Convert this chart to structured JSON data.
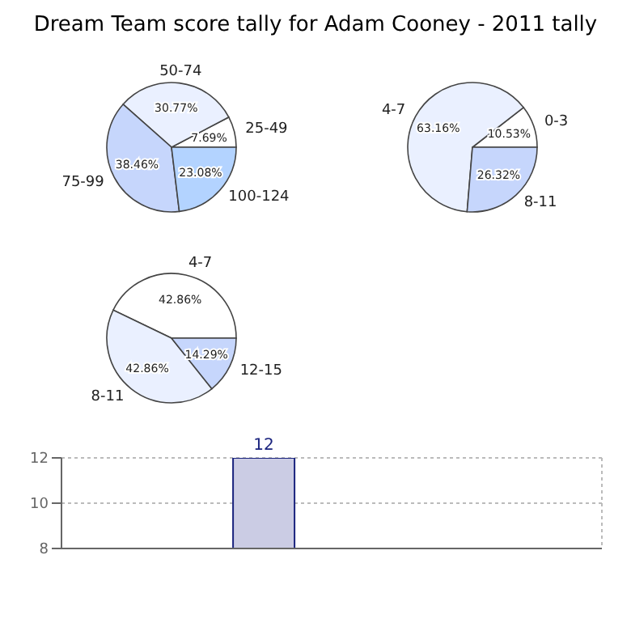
{
  "chart_data": [
    {
      "type": "pie",
      "title": "Dream Team score tally for Adam Cooney - 2011 tally",
      "categories": [
        "25-49",
        "50-74",
        "75-99",
        "100-124"
      ],
      "values": [
        7.69,
        30.77,
        38.46,
        23.08
      ],
      "value_labels": [
        "7.69%",
        "30.77%",
        "38.46%",
        "23.08%"
      ],
      "colors": [
        "#ffffff",
        "#eaf0ff",
        "#c6d6fc",
        "#b3d3ff"
      ]
    },
    {
      "type": "pie",
      "categories": [
        "0-3",
        "4-7",
        "8-11"
      ],
      "values": [
        10.53,
        63.16,
        26.32
      ],
      "value_labels": [
        "10.53%",
        "63.16%",
        "26.32%"
      ],
      "colors": [
        "#ffffff",
        "#eaf0ff",
        "#c6d6fc"
      ]
    },
    {
      "type": "pie",
      "categories": [
        "4-7",
        "8-11",
        "12-15"
      ],
      "values": [
        42.86,
        42.86,
        14.29
      ],
      "value_labels": [
        "42.86%",
        "42.86%",
        "14.29%"
      ],
      "colors": [
        "#ffffff",
        "#eaf0ff",
        "#c6d6fc"
      ]
    },
    {
      "type": "bar",
      "categories": [
        null,
        null,
        null,
        null
      ],
      "values": [
        null,
        12,
        null,
        null
      ],
      "color": "#cbcce4",
      "data_labels": true,
      "ylim": [
        8,
        12
      ],
      "yticks": [
        8,
        10,
        12
      ],
      "grid": true,
      "tick_labels": "y"
    }
  ]
}
